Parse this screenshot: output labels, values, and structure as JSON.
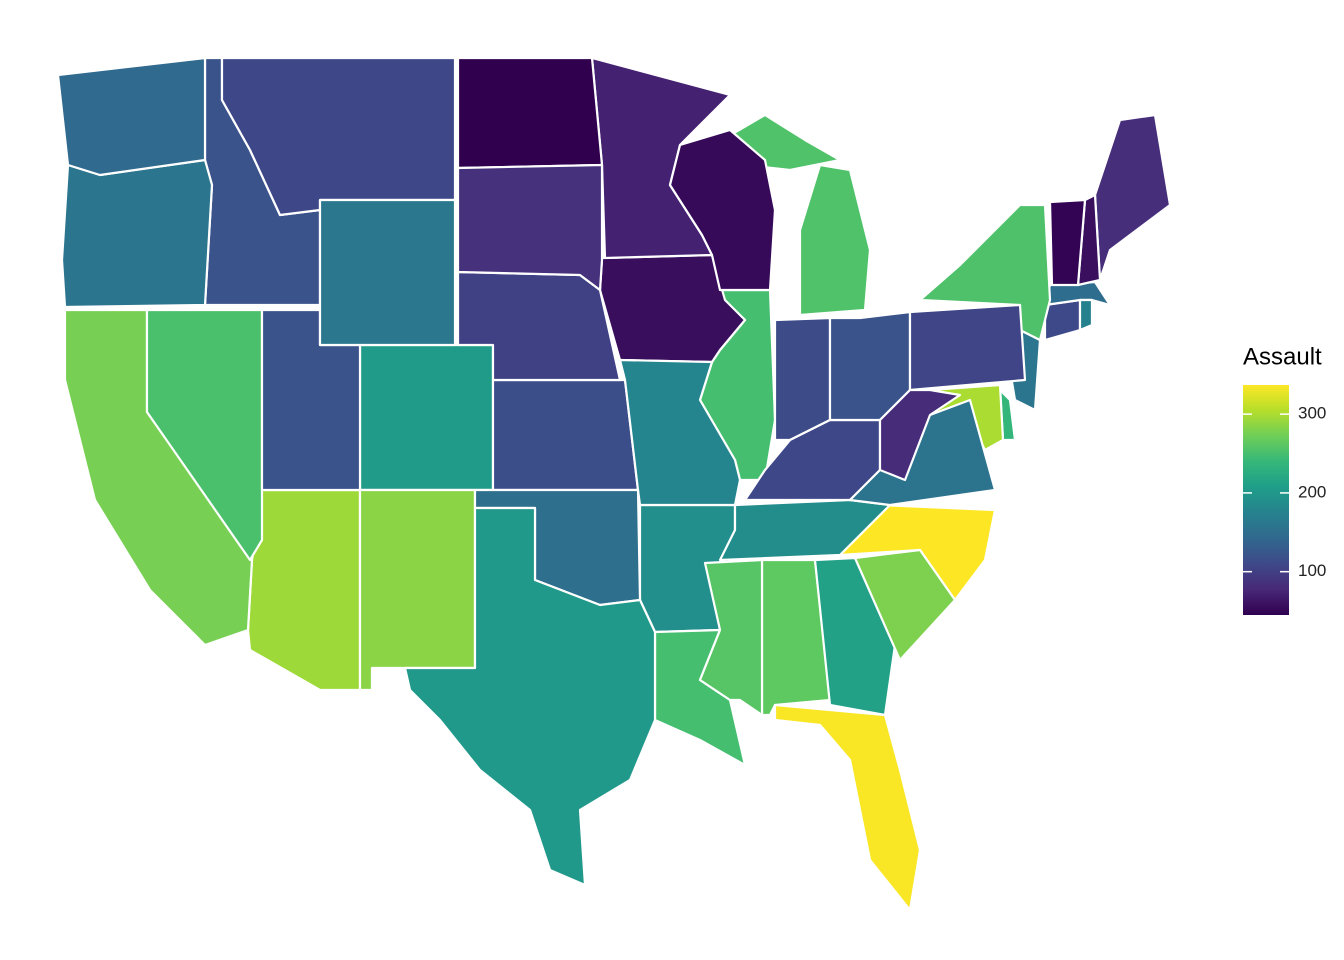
{
  "chart_data": {
    "type": "choropleth",
    "legend_title": "Assault",
    "limits": [
      45,
      337
    ],
    "ticks": [
      100,
      200,
      300
    ],
    "colormap": [
      "#30004f",
      "#482878",
      "#3e4989",
      "#31688e",
      "#26828e",
      "#1f9e89",
      "#35b779",
      "#6ece58",
      "#b5de2b",
      "#fde725"
    ],
    "values": [
      263,
      294,
      190,
      276,
      204,
      110,
      238,
      335,
      211,
      120,
      249,
      113,
      56,
      115,
      109,
      249,
      83,
      300,
      149,
      255,
      72,
      259,
      178,
      109,
      102,
      252,
      57,
      159,
      285,
      254,
      337,
      45,
      120,
      151,
      159,
      106,
      174,
      279,
      86,
      188,
      201,
      120,
      48,
      156,
      145,
      81,
      53,
      161
    ]
  }
}
